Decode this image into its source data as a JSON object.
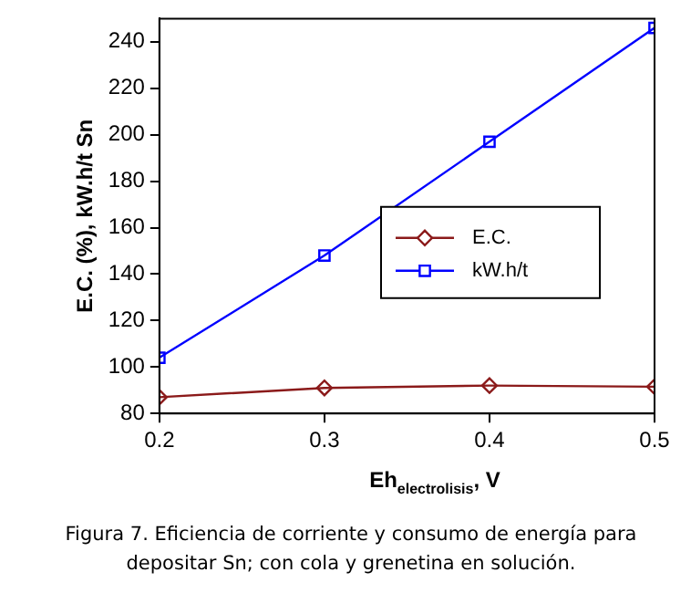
{
  "chart_data": {
    "type": "line",
    "xlabel": "Eh$_{electrolisis}$, V",
    "ylabel": "E.C. (%), kW.h/t Sn",
    "x": [
      0.2,
      0.3,
      0.4,
      0.5
    ],
    "series": [
      {
        "name": "E.C.",
        "color": "#8b1a1a",
        "marker": "diamond",
        "values": [
          87,
          91,
          92,
          91.5
        ]
      },
      {
        "name": "kW.h/t",
        "color": "#0000ff",
        "marker": "square",
        "values": [
          104,
          148,
          197,
          246
        ]
      }
    ],
    "xlim": [
      0.2,
      0.5
    ],
    "xticks": [
      0.2,
      0.3,
      0.4,
      0.5
    ],
    "ylim": [
      80,
      250
    ],
    "yticks": [
      80,
      100,
      120,
      140,
      160,
      180,
      200,
      220,
      240
    ],
    "grid": false,
    "legend": "right",
    "line_style": "solid",
    "annotations": [
      "Figura 7. Eficiencia de corriente y consumo  de energía para depositar Sn; con cola y grenetina en solución."
    ]
  }
}
